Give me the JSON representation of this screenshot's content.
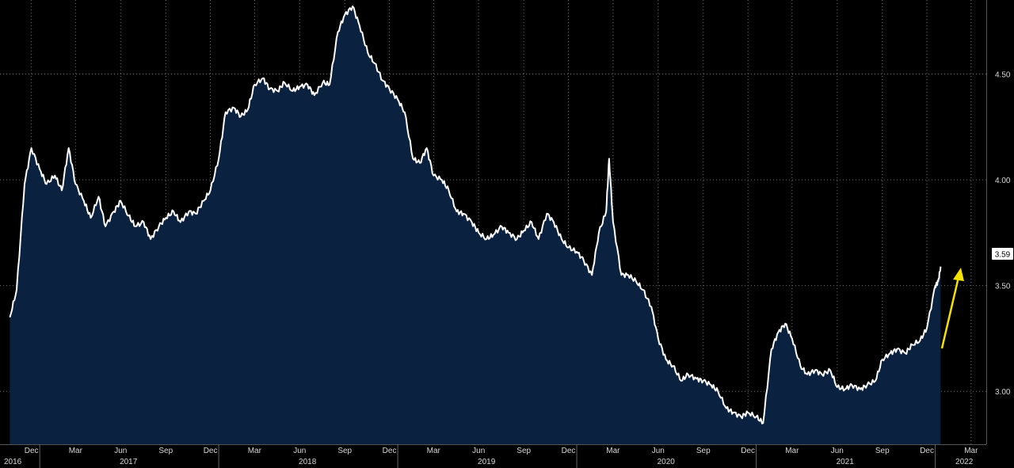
{
  "chart_data": {
    "type": "area",
    "title": "",
    "xlabel": "",
    "ylabel": "",
    "ylim": [
      2.75,
      4.85
    ],
    "yticks": [
      "3.00",
      "3.50",
      "4.00",
      "4.50"
    ],
    "ytick_values": [
      3.0,
      3.5,
      4.0,
      4.5
    ],
    "month_ticks": [
      "Dec",
      "Mar",
      "Jun",
      "Sep",
      "Dec",
      "Mar",
      "Jun",
      "Sep",
      "Dec",
      "Mar",
      "Jun",
      "Sep",
      "Dec",
      "Mar",
      "Jun",
      "Sep",
      "Dec",
      "Mar",
      "Jun",
      "Sep",
      "Dec",
      "Mar"
    ],
    "year_ticks": [
      "2016",
      "2017",
      "2018",
      "2019",
      "2020",
      "2021",
      "2022"
    ],
    "last_value_label": "3.59",
    "grid": true,
    "colors": {
      "line": "#ffffff",
      "fill": "#0b2140",
      "background": "#000000",
      "annotation_arrow": "#f5e100",
      "grid": "#6b6b6b"
    },
    "annotation": {
      "type": "arrow",
      "direction": "up",
      "color": "#f5e100"
    },
    "series": [
      {
        "x": [
          "2016-11-01",
          "2016-11-15",
          "2016-12-01",
          "2016-12-15",
          "2017-01-01",
          "2017-01-15",
          "2017-02-01",
          "2017-02-15",
          "2017-03-01",
          "2017-03-15",
          "2017-04-01",
          "2017-04-15",
          "2017-05-01",
          "2017-05-15",
          "2017-06-01",
          "2017-06-15",
          "2017-07-01",
          "2017-07-15",
          "2017-08-01",
          "2017-08-15",
          "2017-09-01",
          "2017-09-15",
          "2017-10-01",
          "2017-10-15",
          "2017-11-01",
          "2017-11-15",
          "2017-12-01",
          "2017-12-15",
          "2018-01-01",
          "2018-01-15",
          "2018-02-01",
          "2018-02-15",
          "2018-03-01",
          "2018-03-15",
          "2018-04-01",
          "2018-04-15",
          "2018-05-01",
          "2018-05-15",
          "2018-06-01",
          "2018-06-15",
          "2018-07-01",
          "2018-07-15",
          "2018-08-01",
          "2018-08-15",
          "2018-09-01",
          "2018-09-15",
          "2018-10-01",
          "2018-10-15",
          "2018-11-01",
          "2018-11-15",
          "2018-12-01",
          "2018-12-15",
          "2019-01-01",
          "2019-01-15",
          "2019-02-01",
          "2019-02-15",
          "2019-03-01",
          "2019-03-15",
          "2019-04-01",
          "2019-04-15",
          "2019-05-01",
          "2019-05-15",
          "2019-06-01",
          "2019-06-15",
          "2019-07-01",
          "2019-07-15",
          "2019-08-01",
          "2019-08-15",
          "2019-09-01",
          "2019-09-15",
          "2019-10-01",
          "2019-10-15",
          "2019-11-01",
          "2019-11-15",
          "2019-12-01",
          "2019-12-15",
          "2020-01-01",
          "2020-01-15",
          "2020-02-01",
          "2020-02-15",
          "2020-03-01",
          "2020-03-07",
          "2020-03-15",
          "2020-04-01",
          "2020-04-15",
          "2020-05-01",
          "2020-05-15",
          "2020-06-01",
          "2020-06-15",
          "2020-07-01",
          "2020-07-15",
          "2020-08-01",
          "2020-08-15",
          "2020-09-01",
          "2020-09-15",
          "2020-10-01",
          "2020-10-15",
          "2020-11-01",
          "2020-11-15",
          "2020-12-01",
          "2020-12-15",
          "2021-01-01",
          "2021-01-15",
          "2021-02-01",
          "2021-02-15",
          "2021-03-01",
          "2021-03-15",
          "2021-04-01",
          "2021-04-15",
          "2021-05-01",
          "2021-05-15",
          "2021-06-01",
          "2021-06-15",
          "2021-07-01",
          "2021-07-15",
          "2021-08-01",
          "2021-08-15",
          "2021-09-01",
          "2021-09-15",
          "2021-10-01",
          "2021-10-15",
          "2021-11-01",
          "2021-11-15",
          "2021-12-01",
          "2021-12-15",
          "2022-01-01",
          "2022-01-07",
          "2022-01-12"
        ],
        "y": [
          3.35,
          3.48,
          3.98,
          4.15,
          4.05,
          3.98,
          4.02,
          3.95,
          4.15,
          3.98,
          3.9,
          3.82,
          3.92,
          3.78,
          3.85,
          3.9,
          3.83,
          3.78,
          3.8,
          3.72,
          3.78,
          3.82,
          3.85,
          3.8,
          3.85,
          3.84,
          3.9,
          3.95,
          4.1,
          4.32,
          4.34,
          4.3,
          4.33,
          4.45,
          4.48,
          4.43,
          4.42,
          4.46,
          4.42,
          4.44,
          4.45,
          4.4,
          4.46,
          4.45,
          4.7,
          4.78,
          4.82,
          4.73,
          4.6,
          4.55,
          4.47,
          4.43,
          4.38,
          4.32,
          4.1,
          4.08,
          4.15,
          4.02,
          4.0,
          3.95,
          3.85,
          3.84,
          3.8,
          3.75,
          3.72,
          3.74,
          3.78,
          3.75,
          3.72,
          3.76,
          3.8,
          3.72,
          3.84,
          3.8,
          3.72,
          3.68,
          3.66,
          3.62,
          3.55,
          3.75,
          3.85,
          4.1,
          3.8,
          3.55,
          3.55,
          3.52,
          3.48,
          3.4,
          3.25,
          3.15,
          3.12,
          3.05,
          3.08,
          3.06,
          3.05,
          3.03,
          3.0,
          2.92,
          2.9,
          2.88,
          2.9,
          2.88,
          2.85,
          3.2,
          3.28,
          3.32,
          3.25,
          3.12,
          3.08,
          3.1,
          3.08,
          3.1,
          3.02,
          3.01,
          3.03,
          3.01,
          3.03,
          3.05,
          3.15,
          3.18,
          3.2,
          3.18,
          3.22,
          3.24,
          3.3,
          3.5,
          3.52,
          3.59
        ]
      }
    ]
  }
}
